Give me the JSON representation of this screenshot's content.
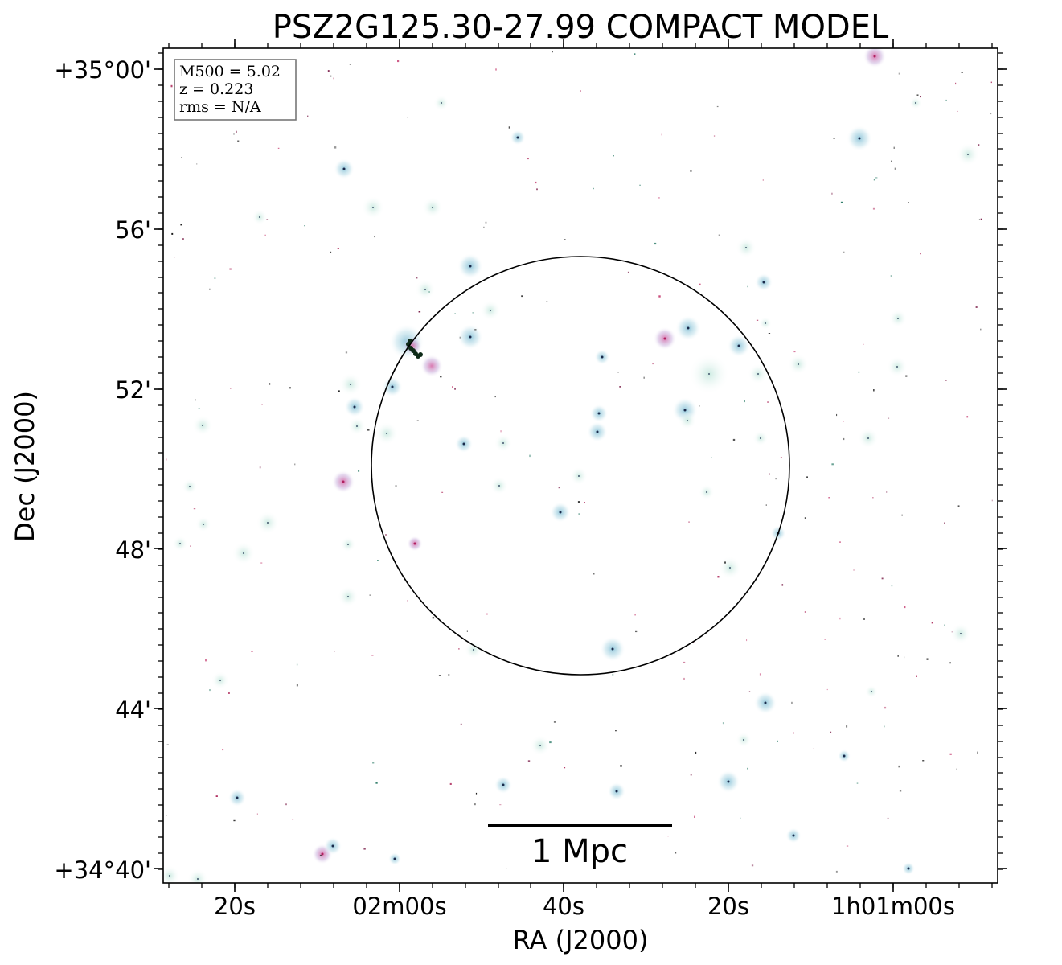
{
  "figure": {
    "title": "PSZ2G125.30-27.99 COMPACT MODEL",
    "xlabel": "RA (J2000)",
    "ylabel": "Dec (J2000)"
  },
  "axes": {
    "ra_ticks": [
      "20s",
      "02m00s",
      "40s",
      "20s",
      "1h01m00s"
    ],
    "dec_ticks": [
      "+35°00'",
      "56'",
      "52'",
      "48'",
      "44'",
      "+34°40'"
    ]
  },
  "infobox": {
    "line1": "M500 = 5.02",
    "line2": "z = 0.223",
    "line3": "rms = N/A"
  },
  "scalebar": {
    "label": "1 Mpc"
  },
  "colors": {
    "source_halo": "#b9dbe6",
    "source_halo_green": "#cfe9df",
    "source_magenta": "#d9559a",
    "source_core": "#1a2a4a",
    "frame": "#000000"
  }
}
